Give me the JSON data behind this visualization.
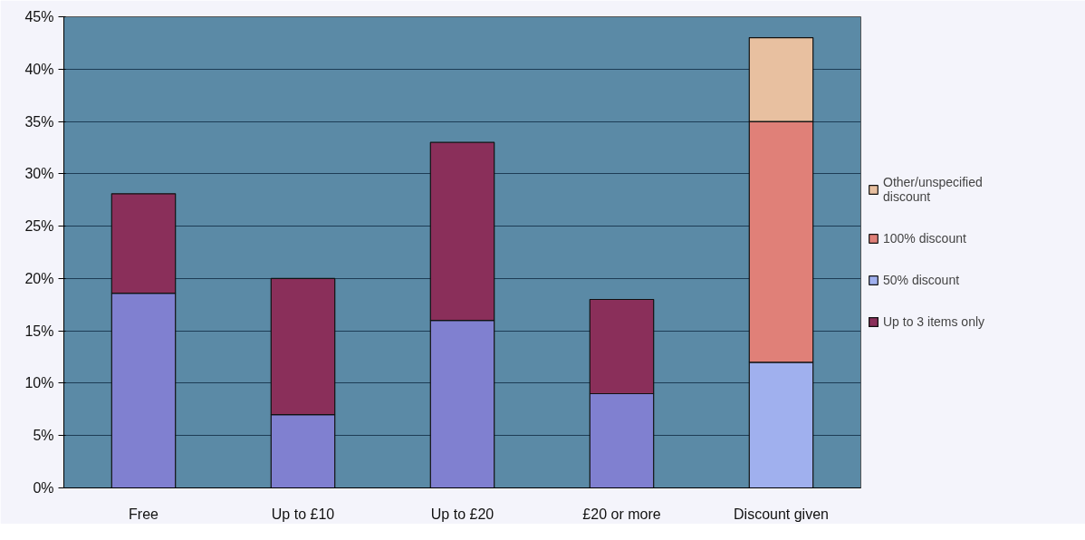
{
  "chart_data": {
    "type": "bar",
    "stacked": true,
    "categories": [
      "Free",
      "Up to £10",
      "Up to £20",
      "£20 or more",
      "Discount given"
    ],
    "series": [
      {
        "color": "#8080d0",
        "values": [
          18.6,
          7,
          16,
          9,
          null
        ]
      },
      {
        "name": "Up to 3 items only",
        "color": "#8a2f5a",
        "values": [
          9.5,
          13,
          17,
          9,
          null
        ]
      },
      {
        "name": "50% discount",
        "color": "#a0b0ee",
        "values": [
          null,
          null,
          null,
          null,
          12
        ]
      },
      {
        "name": "100% discount",
        "color": "#e08078",
        "values": [
          null,
          null,
          null,
          null,
          23
        ]
      },
      {
        "name": "Other/unspecified discount",
        "color": "#e8c0a0",
        "values": [
          null,
          null,
          null,
          null,
          8
        ]
      }
    ],
    "ylim": [
      0,
      45
    ],
    "yticks": [
      {
        "value": 0,
        "label": "0%"
      },
      {
        "value": 5,
        "label": "5%"
      },
      {
        "value": 10,
        "label": "10%"
      },
      {
        "value": 15,
        "label": "15%"
      },
      {
        "value": 20,
        "label": "20%"
      },
      {
        "value": 25,
        "label": "25%"
      },
      {
        "value": 30,
        "label": "30%"
      },
      {
        "value": 35,
        "label": "35%"
      },
      {
        "value": 40,
        "label": "40%"
      },
      {
        "value": 45,
        "label": "45%"
      }
    ],
    "grid": "y",
    "legend": "right"
  }
}
